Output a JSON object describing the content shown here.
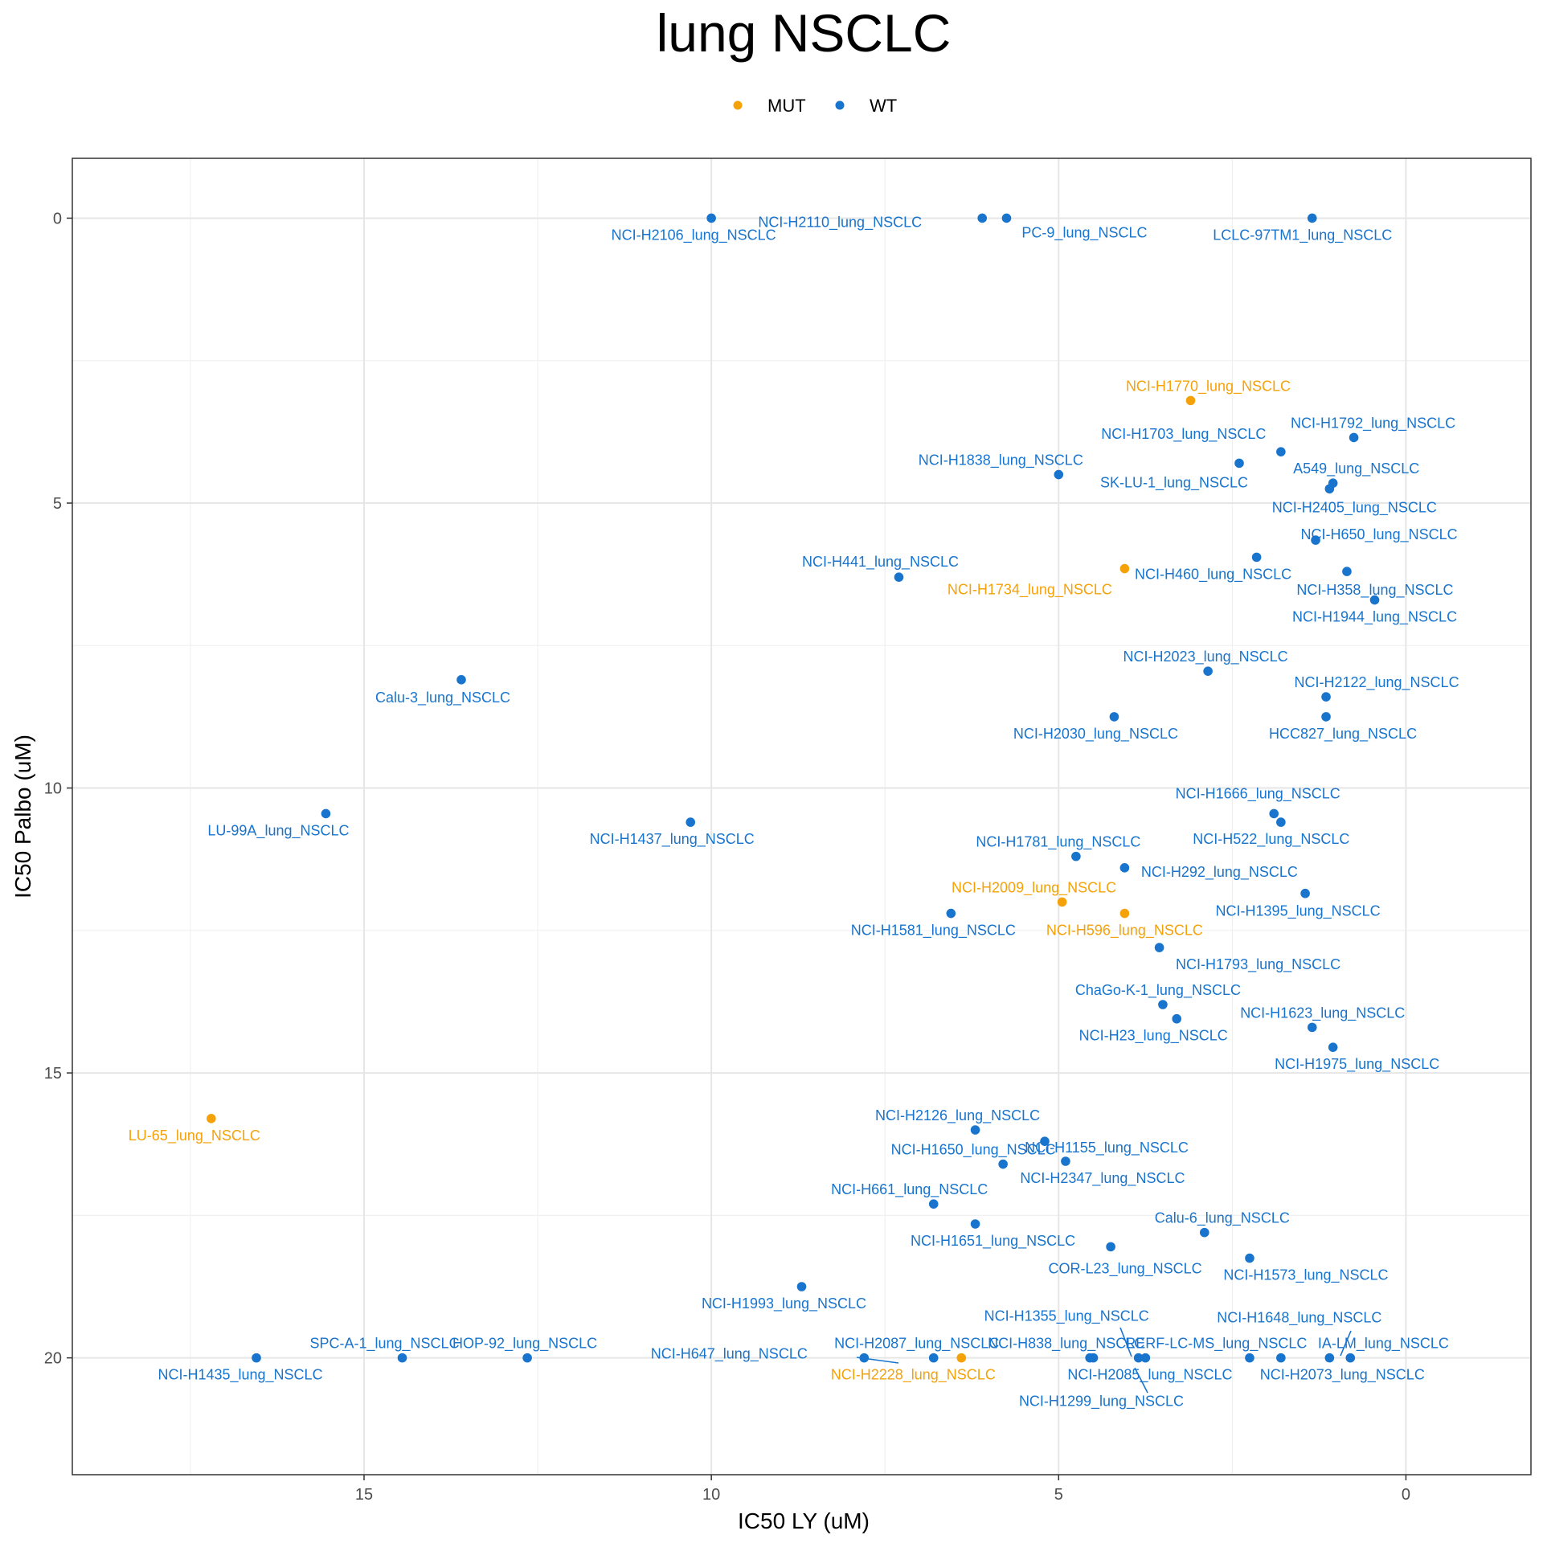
{
  "chart_data": {
    "type": "scatter",
    "title": "lung NSCLC",
    "xlabel": "IC50 LY (uM)",
    "ylabel": "IC50 Palbo (uM)",
    "x_reversed": true,
    "y_reversed": true,
    "xlim": [
      19.2,
      -1.8
    ],
    "ylim": [
      -1.05,
      22.05
    ],
    "x_ticks": [
      15,
      10,
      5,
      0
    ],
    "y_ticks": [
      0,
      5,
      10,
      15,
      20
    ],
    "grid": true,
    "legend_position": "top",
    "legend": [
      {
        "label": "MUT",
        "color": "#F5A20A"
      },
      {
        "label": "WT",
        "color": "#1874CD"
      }
    ],
    "points": [
      {
        "label": "NCI-H2106_lung_NSCLC",
        "x": 10.0,
        "y": 0.0,
        "group": "WT"
      },
      {
        "label": "NCI-H2110_lung_NSCLC",
        "x": 6.1,
        "y": 0.0,
        "group": "WT"
      },
      {
        "label": "PC-9_lung_NSCLC",
        "x": 5.75,
        "y": 0.0,
        "group": "WT"
      },
      {
        "label": "LCLC-97TM1_lung_NSCLC",
        "x": 1.35,
        "y": 0.0,
        "group": "WT"
      },
      {
        "label": "NCI-H1770_lung_NSCLC",
        "x": 3.1,
        "y": 3.2,
        "group": "MUT"
      },
      {
        "label": "NCI-H1792_lung_NSCLC",
        "x": 0.75,
        "y": 3.85,
        "group": "WT"
      },
      {
        "label": "NCI-H1703_lung_NSCLC",
        "x": 1.8,
        "y": 4.1,
        "group": "WT"
      },
      {
        "label": "NCI-H1838_lung_NSCLC",
        "x": 5.0,
        "y": 4.5,
        "group": "WT"
      },
      {
        "label": "SK-LU-1_lung_NSCLC",
        "x": 2.4,
        "y": 4.3,
        "group": "WT"
      },
      {
        "label": "A549_lung_NSCLC",
        "x": 1.05,
        "y": 4.65,
        "group": "WT"
      },
      {
        "label": "NCI-H2405_lung_NSCLC",
        "x": 1.1,
        "y": 4.75,
        "group": "WT"
      },
      {
        "label": "NCI-H650_lung_NSCLC",
        "x": 1.3,
        "y": 5.65,
        "group": "WT"
      },
      {
        "label": "NCI-H441_lung_NSCLC",
        "x": 7.3,
        "y": 6.3,
        "group": "WT"
      },
      {
        "label": "NCI-H1734_lung_NSCLC",
        "x": 4.05,
        "y": 6.15,
        "group": "MUT"
      },
      {
        "label": "NCI-H460_lung_NSCLC",
        "x": 2.15,
        "y": 5.95,
        "group": "WT"
      },
      {
        "label": "NCI-H358_lung_NSCLC",
        "x": 0.85,
        "y": 6.2,
        "group": "WT"
      },
      {
        "label": "NCI-H1944_lung_NSCLC",
        "x": 0.45,
        "y": 6.7,
        "group": "WT"
      },
      {
        "label": "Calu-3_lung_NSCLC",
        "x": 13.6,
        "y": 8.1,
        "group": "WT"
      },
      {
        "label": "NCI-H2023_lung_NSCLC",
        "x": 2.85,
        "y": 7.95,
        "group": "WT"
      },
      {
        "label": "NCI-H2122_lung_NSCLC",
        "x": 1.15,
        "y": 8.4,
        "group": "WT"
      },
      {
        "label": "NCI-H2030_lung_NSCLC",
        "x": 4.2,
        "y": 8.75,
        "group": "WT"
      },
      {
        "label": "HCC827_lung_NSCLC",
        "x": 1.15,
        "y": 8.75,
        "group": "WT"
      },
      {
        "label": "LU-99A_lung_NSCLC",
        "x": 15.55,
        "y": 10.45,
        "group": "WT"
      },
      {
        "label": "NCI-H1437_lung_NSCLC",
        "x": 10.3,
        "y": 10.6,
        "group": "WT"
      },
      {
        "label": "NCI-H1666_lung_NSCLC",
        "x": 1.9,
        "y": 10.45,
        "group": "WT"
      },
      {
        "label": "NCI-H522_lung_NSCLC",
        "x": 1.8,
        "y": 10.6,
        "group": "WT"
      },
      {
        "label": "NCI-H1781_lung_NSCLC",
        "x": 4.75,
        "y": 11.2,
        "group": "WT"
      },
      {
        "label": "NCI-H292_lung_NSCLC",
        "x": 4.05,
        "y": 11.4,
        "group": "WT"
      },
      {
        "label": "NCI-H2009_lung_NSCLC",
        "x": 4.95,
        "y": 12.0,
        "group": "MUT"
      },
      {
        "label": "NCI-H1395_lung_NSCLC",
        "x": 1.45,
        "y": 11.85,
        "group": "WT"
      },
      {
        "label": "NCI-H1581_lung_NSCLC",
        "x": 6.55,
        "y": 12.2,
        "group": "WT"
      },
      {
        "label": "NCI-H596_lung_NSCLC",
        "x": 4.05,
        "y": 12.2,
        "group": "MUT"
      },
      {
        "label": "NCI-H1793_lung_NSCLC",
        "x": 3.55,
        "y": 12.8,
        "group": "WT"
      },
      {
        "label": "ChaGo-K-1_lung_NSCLC",
        "x": 3.5,
        "y": 13.8,
        "group": "WT"
      },
      {
        "label": "NCI-H23_lung_NSCLC",
        "x": 3.3,
        "y": 14.05,
        "group": "WT"
      },
      {
        "label": "NCI-H1623_lung_NSCLC",
        "x": 1.35,
        "y": 14.2,
        "group": "WT"
      },
      {
        "label": "NCI-H1975_lung_NSCLC",
        "x": 1.05,
        "y": 14.55,
        "group": "WT"
      },
      {
        "label": "LU-65_lung_NSCLC",
        "x": 17.2,
        "y": 15.8,
        "group": "MUT"
      },
      {
        "label": "NCI-H2126_lung_NSCLC",
        "x": 6.2,
        "y": 16.0,
        "group": "WT"
      },
      {
        "label": "NCI-H1650_lung_NSCLC",
        "x": 5.8,
        "y": 16.6,
        "group": "WT"
      },
      {
        "label": "NCI-H1155_lung_NSCLC",
        "x": 5.2,
        "y": 16.2,
        "group": "WT"
      },
      {
        "label": "NCI-H2347_lung_NSCLC",
        "x": 4.9,
        "y": 16.55,
        "group": "WT"
      },
      {
        "label": "NCI-H661_lung_NSCLC",
        "x": 6.8,
        "y": 17.3,
        "group": "WT"
      },
      {
        "label": "NCI-H1651_lung_NSCLC",
        "x": 6.2,
        "y": 17.65,
        "group": "WT"
      },
      {
        "label": "Calu-6_lung_NSCLC",
        "x": 2.9,
        "y": 17.8,
        "group": "WT"
      },
      {
        "label": "COR-L23_lung_NSCLC",
        "x": 4.25,
        "y": 18.05,
        "group": "WT"
      },
      {
        "label": "NCI-H1573_lung_NSCLC",
        "x": 2.25,
        "y": 18.25,
        "group": "WT"
      },
      {
        "label": "NCI-H1993_lung_NSCLC",
        "x": 8.7,
        "y": 18.75,
        "group": "WT"
      },
      {
        "label": "NCI-H1435_lung_NSCLC",
        "x": 16.55,
        "y": 20.0,
        "group": "WT"
      },
      {
        "label": "SPC-A-1_lung_NSCLC",
        "x": 14.45,
        "y": 20.0,
        "group": "WT"
      },
      {
        "label": "HOP-92_lung_NSCLC",
        "x": 12.65,
        "y": 20.0,
        "group": "WT"
      },
      {
        "label": "NCI-H647_lung_NSCLC",
        "x": 7.8,
        "y": 20.0,
        "group": "WT"
      },
      {
        "label": "NCI-H2087_lung_NSCLC",
        "x": 6.8,
        "y": 20.0,
        "group": "WT"
      },
      {
        "label": "NCI-H2228_lung_NSCLC",
        "x": 6.4,
        "y": 20.0,
        "group": "MUT"
      },
      {
        "label": "NCI-H1355_lung_NSCLC",
        "x": 4.55,
        "y": 20.0,
        "group": "WT"
      },
      {
        "label": "NCI-H838_lung_NSCLC",
        "x": 3.85,
        "y": 20.0,
        "group": "WT"
      },
      {
        "label": "RERF-LC-MS_lung_NSCLC",
        "x": 3.75,
        "y": 20.0,
        "group": "WT"
      },
      {
        "label": "NCI-H2085_lung_NSCLC",
        "x": 2.25,
        "y": 20.0,
        "group": "WT"
      },
      {
        "label": "NCI-H1299_lung_NSCLC",
        "x": 4.5,
        "y": 20.0,
        "group": "WT"
      },
      {
        "label": "NCI-H1648_lung_NSCLC",
        "x": 1.8,
        "y": 20.0,
        "group": "WT"
      },
      {
        "label": "IA-LM_lung_NSCLC",
        "x": 1.1,
        "y": 20.0,
        "group": "WT"
      },
      {
        "label": "NCI-H2073_lung_NSCLC",
        "x": 0.8,
        "y": 20.0,
        "group": "WT"
      }
    ]
  }
}
